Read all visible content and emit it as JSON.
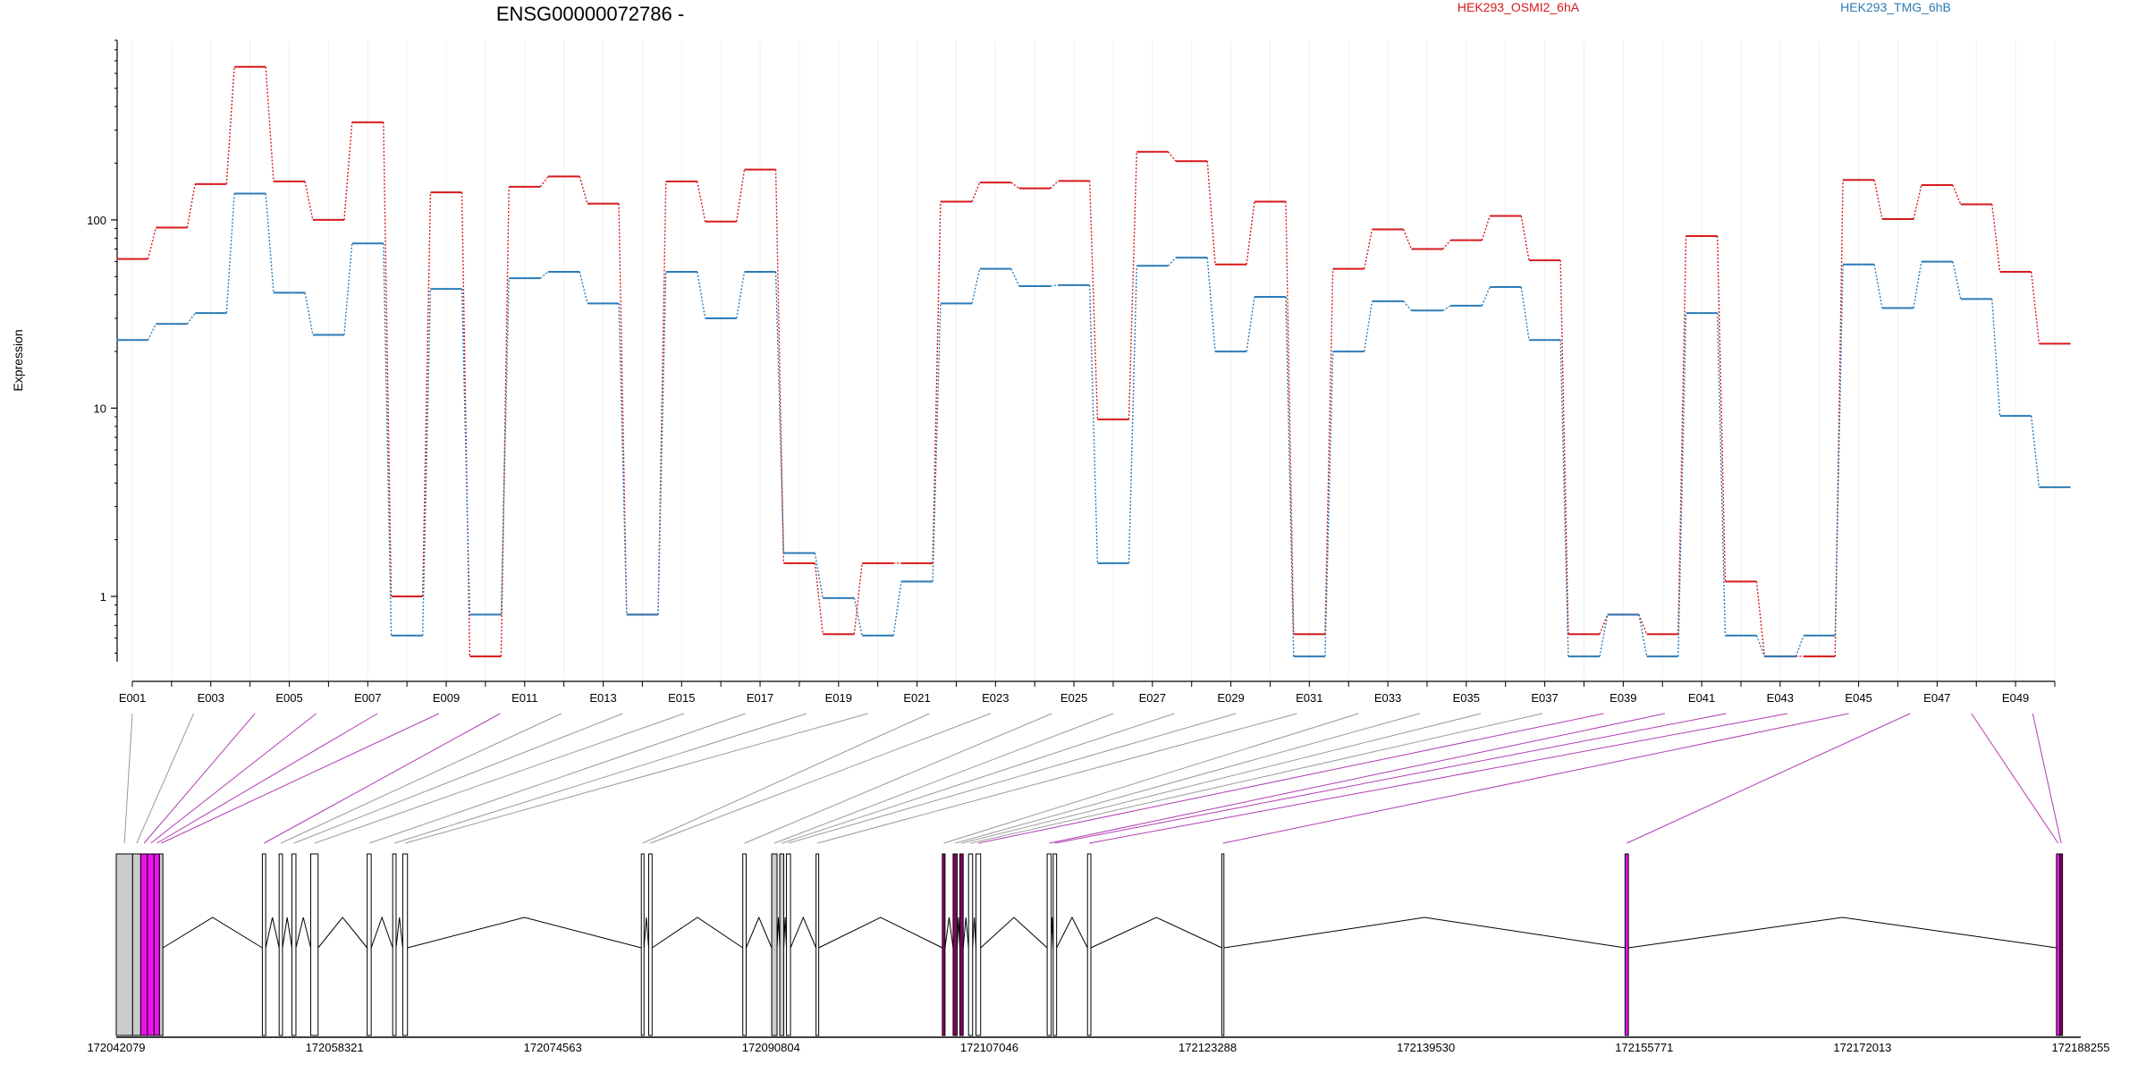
{
  "chart_data": {
    "type": "line",
    "title": "ENSG00000072786 -",
    "ylabel": "Expression",
    "xlabel": "",
    "yscale": "log",
    "ylim": [
      0.45,
      900
    ],
    "y_ticks": [
      1,
      10,
      100
    ],
    "y_tick_labels": [
      "1",
      "10",
      "100"
    ],
    "exon_ticks": [
      "E001",
      "E003",
      "E005",
      "E007",
      "E009",
      "E011",
      "E013",
      "E015",
      "E017",
      "E019",
      "E021",
      "E023",
      "E025",
      "E027",
      "E029",
      "E031",
      "E033",
      "E035",
      "E037",
      "E039",
      "E041",
      "E043",
      "E045",
      "E047",
      "E049"
    ],
    "exons": [
      "E001",
      "E002",
      "E003",
      "E004",
      "E005",
      "E006",
      "E007",
      "E008",
      "E009",
      "E010",
      "E011",
      "E012",
      "E013",
      "E014",
      "E015",
      "E016",
      "E017",
      "E018",
      "E019",
      "E020",
      "E021",
      "E022",
      "E023",
      "E024",
      "E025",
      "E026",
      "E027",
      "E028",
      "E029",
      "E030",
      "E031",
      "E032",
      "E033",
      "E034",
      "E035",
      "E036",
      "E037",
      "E038",
      "E039",
      "E040",
      "E041",
      "E042",
      "E043",
      "E044",
      "E045",
      "E046",
      "E047",
      "E048",
      "E049",
      "E050"
    ],
    "legend_placement": "top-right",
    "series": [
      {
        "name": "HEK293_OSMI2_6hA",
        "color": "#d7191c",
        "values": [
          62,
          91,
          155,
          650,
          160,
          100,
          330,
          1.0,
          140,
          0.48,
          150,
          170,
          122,
          0.8,
          160,
          98,
          185,
          1.5,
          0.63,
          1.5,
          1.5,
          125,
          158,
          147,
          161,
          8.7,
          230,
          205,
          58,
          125,
          0.63,
          55,
          89,
          70,
          78,
          105,
          61,
          0.63,
          0.8,
          0.63,
          82,
          1.2,
          0.48,
          0.48,
          163,
          101,
          153,
          121,
          53,
          22
        ]
      },
      {
        "name": "HEK293_TMG_6hB",
        "color": "#2c7bb6",
        "values": [
          23,
          28,
          32,
          138,
          41,
          24.5,
          75,
          0.62,
          43,
          0.8,
          49,
          53,
          36,
          0.8,
          53,
          30,
          53,
          1.7,
          0.98,
          0.62,
          1.2,
          36,
          55,
          44.5,
          45,
          1.5,
          57,
          63,
          20,
          39,
          0.48,
          20,
          37,
          33,
          35,
          44,
          23,
          0.48,
          0.8,
          0.48,
          32,
          0.62,
          0.48,
          0.62,
          58,
          34,
          60,
          38,
          9.1,
          3.8
        ]
      }
    ],
    "gene_model": {
      "coordinate_ticks": [
        "172042079",
        "172058321",
        "172074563",
        "172090804",
        "172107046",
        "172123288",
        "172139530",
        "172155771",
        "172172013",
        "172188255"
      ],
      "range": [
        172042079,
        172188255
      ],
      "exons": [
        {
          "start": 172042079,
          "end": 172043300,
          "fill": "#cccccc"
        },
        {
          "start": 172043300,
          "end": 172043900,
          "fill": "#cccccc"
        },
        {
          "start": 172043900,
          "end": 172044400,
          "fill": "#ee11ee"
        },
        {
          "start": 172044400,
          "end": 172044900,
          "fill": "#ee11ee"
        },
        {
          "start": 172044900,
          "end": 172045300,
          "fill": "#ee11ee"
        },
        {
          "start": 172045300,
          "end": 172045550,
          "fill": "#cccccc"
        },
        {
          "start": 172052950,
          "end": 172053200,
          "fill": "#ffffff"
        },
        {
          "start": 172054200,
          "end": 172054450,
          "fill": "#ffffff"
        },
        {
          "start": 172055150,
          "end": 172055450,
          "fill": "#ffffff"
        },
        {
          "start": 172056550,
          "end": 172057100,
          "fill": "#ffffff"
        },
        {
          "start": 172060750,
          "end": 172061050,
          "fill": "#ffffff"
        },
        {
          "start": 172062650,
          "end": 172062900,
          "fill": "#ffffff"
        },
        {
          "start": 172063400,
          "end": 172063750,
          "fill": "#ffffff"
        },
        {
          "start": 172081150,
          "end": 172081350,
          "fill": "#ffffff"
        },
        {
          "start": 172081700,
          "end": 172081950,
          "fill": "#ffffff"
        },
        {
          "start": 172088700,
          "end": 172088950,
          "fill": "#ffffff"
        },
        {
          "start": 172090850,
          "end": 172091250,
          "fill": "#cccccc"
        },
        {
          "start": 172091450,
          "end": 172091750,
          "fill": "#cccccc"
        },
        {
          "start": 172091950,
          "end": 172092250,
          "fill": "#ffffff"
        },
        {
          "start": 172094150,
          "end": 172094350,
          "fill": "#ffffff"
        },
        {
          "start": 172103550,
          "end": 172103750,
          "fill": "#880066"
        },
        {
          "start": 172104350,
          "end": 172104650,
          "fill": "#880066"
        },
        {
          "start": 172104850,
          "end": 172105100,
          "fill": "#880066"
        },
        {
          "start": 172105500,
          "end": 172105800,
          "fill": "#ffffff"
        },
        {
          "start": 172106050,
          "end": 172106400,
          "fill": "#ffffff"
        },
        {
          "start": 172111350,
          "end": 172111650,
          "fill": "#ffffff"
        },
        {
          "start": 172111800,
          "end": 172112050,
          "fill": "#ffffff"
        },
        {
          "start": 172114350,
          "end": 172114600,
          "fill": "#ffffff"
        },
        {
          "start": 172124350,
          "end": 172124500,
          "fill": "#ffffff"
        },
        {
          "start": 172154350,
          "end": 172154600,
          "fill": "#ee11ee"
        },
        {
          "start": 172186450,
          "end": 172186700,
          "fill": "#ee11ee"
        },
        {
          "start": 172186700,
          "end": 172186900,
          "fill": "#880066"
        }
      ],
      "highlighted_exon_links": [
        2,
        3,
        4,
        5,
        6,
        24,
        25,
        26,
        27,
        28,
        29,
        30,
        31,
        32,
        33,
        34,
        35,
        46,
        48,
        49
      ]
    }
  }
}
